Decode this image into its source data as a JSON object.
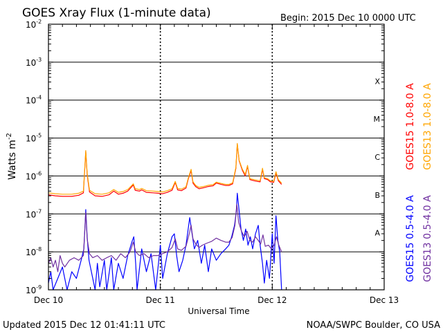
{
  "chart_data": {
    "type": "line",
    "title": "GOES Xray Flux (1-minute data)",
    "begin_label": "Begin:  2015 Dec 10 0000 UTC",
    "xlabel": "Universal Time",
    "ylabel": "Watts m",
    "ylabel_sup": "-2",
    "x_unit": "hours since 2015 Dec 10 0000 UTC",
    "xlim": [
      0,
      72
    ],
    "yscale": "log",
    "ylim": [
      1e-09,
      0.01
    ],
    "x_ticks": [
      {
        "value": 0,
        "label": "Dec 10"
      },
      {
        "value": 24,
        "label": "Dec 11"
      },
      {
        "value": 48,
        "label": "Dec 12"
      },
      {
        "value": 72,
        "label": "Dec 13"
      }
    ],
    "y_ticks": [
      {
        "exp": -9,
        "label": "10",
        "sup": "-9"
      },
      {
        "exp": -8,
        "label": "10",
        "sup": "-8"
      },
      {
        "exp": -7,
        "label": "10",
        "sup": "-7"
      },
      {
        "exp": -6,
        "label": "10",
        "sup": "-6"
      },
      {
        "exp": -5,
        "label": "10",
        "sup": "-5"
      },
      {
        "exp": -4,
        "label": "10",
        "sup": "-4"
      },
      {
        "exp": -3,
        "label": "10",
        "sup": "-3"
      },
      {
        "exp": -2,
        "label": "10",
        "sup": "-2"
      }
    ],
    "flare_classes": [
      {
        "label": "A",
        "exp": -7.5
      },
      {
        "label": "B",
        "exp": -6.5
      },
      {
        "label": "C",
        "exp": -5.5
      },
      {
        "label": "M",
        "exp": -4.5
      },
      {
        "label": "X",
        "exp": -3.5
      }
    ],
    "series": [
      {
        "name": "GOES15 1.0-8.0 A",
        "color": "#ff0000",
        "points": [
          [
            0,
            3.2e-07
          ],
          [
            1.5,
            3e-07
          ],
          [
            3,
            2.9e-07
          ],
          [
            5,
            2.9e-07
          ],
          [
            6.5,
            3.1e-07
          ],
          [
            7.5,
            3.6e-07
          ],
          [
            8.0,
            4.5e-06
          ],
          [
            8.3,
            1.1e-06
          ],
          [
            8.8,
            3.8e-07
          ],
          [
            10,
            3e-07
          ],
          [
            11.5,
            2.9e-07
          ],
          [
            13,
            3.2e-07
          ],
          [
            14,
            4e-07
          ],
          [
            15,
            3.3e-07
          ],
          [
            16,
            3.5e-07
          ],
          [
            17,
            4e-07
          ],
          [
            18.2,
            5.8e-07
          ],
          [
            18.6,
            4.2e-07
          ],
          [
            19.5,
            4e-07
          ],
          [
            20,
            4.3e-07
          ],
          [
            21,
            3.7e-07
          ],
          [
            22.5,
            3.6e-07
          ],
          [
            23.5,
            3.5e-07
          ],
          [
            24.5,
            3.4e-07
          ],
          [
            25.5,
            3.7e-07
          ],
          [
            26.5,
            4.2e-07
          ],
          [
            27.2,
            6.8e-07
          ],
          [
            27.7,
            4.3e-07
          ],
          [
            28.5,
            4.1e-07
          ],
          [
            29.5,
            4.8e-07
          ],
          [
            30.0,
            8.5e-07
          ],
          [
            30.6,
            1.4e-06
          ],
          [
            31.0,
            6.5e-07
          ],
          [
            31.6,
            5.2e-07
          ],
          [
            32.3,
            4.6e-07
          ],
          [
            33.3,
            4.9e-07
          ],
          [
            34.3,
            5.3e-07
          ],
          [
            35.3,
            5.5e-07
          ],
          [
            36.0,
            6.5e-07
          ],
          [
            37,
            6e-07
          ],
          [
            38,
            5.6e-07
          ],
          [
            38.7,
            5.6e-07
          ],
          [
            39.5,
            6.2e-07
          ],
          [
            40.2,
            1.6e-06
          ],
          [
            40.5,
            7e-06
          ],
          [
            40.9,
            2.5e-06
          ],
          [
            41.6,
            1.4e-06
          ],
          [
            42.2,
            1e-06
          ],
          [
            42.7,
            1.8e-06
          ],
          [
            43.2,
            8e-07
          ],
          [
            44.1,
            7.5e-07
          ],
          [
            44.8,
            7.2e-07
          ],
          [
            45.4,
            7e-07
          ],
          [
            45.9,
            1.5e-06
          ],
          [
            46.3,
            8.5e-07
          ],
          [
            47.0,
            8e-07
          ],
          [
            47.6,
            7e-07
          ],
          [
            48.3,
            6.8e-07
          ],
          [
            48.8,
            1.2e-06
          ],
          [
            49.3,
            7.5e-07
          ],
          [
            50.0,
            6e-07
          ]
        ]
      },
      {
        "name": "GOES13 1.0-8.0 A",
        "color": "#ffa500",
        "points": [
          [
            0,
            3.6e-07
          ],
          [
            1.5,
            3.4e-07
          ],
          [
            3,
            3.3e-07
          ],
          [
            5,
            3.3e-07
          ],
          [
            6.5,
            3.5e-07
          ],
          [
            7.5,
            4e-07
          ],
          [
            8.0,
            4.7e-06
          ],
          [
            8.3,
            1.2e-06
          ],
          [
            8.8,
            4.2e-07
          ],
          [
            10,
            3.4e-07
          ],
          [
            11.5,
            3.3e-07
          ],
          [
            13,
            3.6e-07
          ],
          [
            14,
            4.4e-07
          ],
          [
            15,
            3.7e-07
          ],
          [
            16,
            3.9e-07
          ],
          [
            17,
            4.4e-07
          ],
          [
            18.2,
            6.2e-07
          ],
          [
            18.6,
            4.6e-07
          ],
          [
            19.5,
            4.4e-07
          ],
          [
            20,
            4.7e-07
          ],
          [
            21,
            4.1e-07
          ],
          [
            22.5,
            4e-07
          ],
          [
            23.5,
            3.9e-07
          ],
          [
            24.5,
            3.8e-07
          ],
          [
            25.5,
            4.1e-07
          ],
          [
            26.5,
            4.6e-07
          ],
          [
            27.2,
            7.2e-07
          ],
          [
            27.7,
            4.7e-07
          ],
          [
            28.5,
            4.5e-07
          ],
          [
            29.5,
            5.2e-07
          ],
          [
            30.0,
            9e-07
          ],
          [
            30.6,
            1.5e-06
          ],
          [
            31.0,
            7e-07
          ],
          [
            31.6,
            5.6e-07
          ],
          [
            32.3,
            5e-07
          ],
          [
            33.3,
            5.3e-07
          ],
          [
            34.3,
            5.7e-07
          ],
          [
            35.3,
            5.9e-07
          ],
          [
            36.0,
            6.9e-07
          ],
          [
            37,
            6.4e-07
          ],
          [
            38,
            6e-07
          ],
          [
            38.7,
            6e-07
          ],
          [
            39.5,
            6.6e-07
          ],
          [
            40.2,
            1.7e-06
          ],
          [
            40.5,
            7.2e-06
          ],
          [
            40.9,
            2.6e-06
          ],
          [
            41.6,
            1.5e-06
          ],
          [
            42.2,
            1.1e-06
          ],
          [
            42.7,
            1.9e-06
          ],
          [
            43.2,
            8.5e-07
          ],
          [
            44.1,
            8e-07
          ],
          [
            44.8,
            7.7e-07
          ],
          [
            45.4,
            7.5e-07
          ],
          [
            45.9,
            1.6e-06
          ],
          [
            46.3,
            9e-07
          ],
          [
            47.0,
            8.5e-07
          ],
          [
            47.6,
            7.5e-07
          ],
          [
            48.3,
            7.2e-07
          ],
          [
            48.8,
            1.3e-06
          ],
          [
            49.3,
            8e-07
          ],
          [
            50.0,
            6.5e-07
          ]
        ]
      },
      {
        "name": "GOES15 0.5-4.0 A",
        "color": "#0000ff",
        "points": [
          [
            0,
            1.5e-09
          ],
          [
            0.5,
            3e-09
          ],
          [
            1,
            8e-10
          ],
          [
            2,
            2e-09
          ],
          [
            3,
            4e-09
          ],
          [
            4,
            1e-09
          ],
          [
            5,
            3e-09
          ],
          [
            6,
            2e-09
          ],
          [
            7,
            6e-09
          ],
          [
            7.6,
            1.2e-08
          ],
          [
            8.0,
            1.3e-07
          ],
          [
            8.3,
            2.5e-08
          ],
          [
            8.7,
            6e-09
          ],
          [
            9.2,
            3e-09
          ],
          [
            10,
            1e-09
          ],
          [
            10.5,
            5e-09
          ],
          [
            11,
            1.2e-09
          ],
          [
            12,
            6e-09
          ],
          [
            12.5,
            1e-09
          ],
          [
            13.5,
            7e-09
          ],
          [
            14,
            8e-10
          ],
          [
            15,
            5e-09
          ],
          [
            16,
            2e-09
          ],
          [
            17,
            8e-09
          ],
          [
            18,
            2e-08
          ],
          [
            18.3,
            2.5e-08
          ],
          [
            18.7,
            5e-09
          ],
          [
            19,
            1e-09
          ],
          [
            20,
            1.2e-08
          ],
          [
            21,
            3e-09
          ],
          [
            22,
            9e-09
          ],
          [
            23,
            1e-09
          ],
          [
            24,
            1.5e-08
          ],
          [
            24.5,
            2e-09
          ],
          [
            25.5,
            9e-09
          ],
          [
            26.5,
            2.5e-08
          ],
          [
            27.0,
            3e-08
          ],
          [
            27.5,
            8e-09
          ],
          [
            28,
            3e-09
          ],
          [
            28.8,
            6e-09
          ],
          [
            29.5,
            1.5e-08
          ],
          [
            30.3,
            8e-08
          ],
          [
            30.8,
            3e-08
          ],
          [
            31.3,
            1.2e-08
          ],
          [
            32,
            2e-08
          ],
          [
            32.8,
            5e-09
          ],
          [
            33.5,
            1.5e-08
          ],
          [
            34.3,
            3e-09
          ],
          [
            35.0,
            1.2e-08
          ],
          [
            36,
            6e-09
          ],
          [
            37,
            9e-09
          ],
          [
            38,
            1.2e-08
          ],
          [
            38.7,
            1.5e-08
          ],
          [
            39.3,
            2.5e-08
          ],
          [
            39.9,
            5e-08
          ],
          [
            40.3,
            1.2e-07
          ],
          [
            40.5,
            3.5e-07
          ],
          [
            40.9,
            1.2e-07
          ],
          [
            41.3,
            4e-08
          ],
          [
            41.8,
            2e-08
          ],
          [
            42.3,
            4e-08
          ],
          [
            42.8,
            1.5e-08
          ],
          [
            43.3,
            2.5e-08
          ],
          [
            43.8,
            1.2e-08
          ],
          [
            44.4,
            3e-08
          ],
          [
            45.0,
            5e-08
          ],
          [
            45.4,
            1.5e-08
          ],
          [
            45.9,
            5e-09
          ],
          [
            46.3,
            1.5e-09
          ],
          [
            46.8,
            6e-09
          ],
          [
            47.4,
            2e-09
          ],
          [
            48.0,
            3e-08
          ],
          [
            48.4,
            5e-09
          ],
          [
            48.8,
            9e-08
          ],
          [
            49.2,
            2e-08
          ],
          [
            49.6,
            1e-08
          ],
          [
            50.0,
            1e-09
          ]
        ]
      },
      {
        "name": "GOES13 0.5-4.0 A",
        "color": "#7030a0",
        "points": [
          [
            0,
            5e-09
          ],
          [
            0.5,
            7e-09
          ],
          [
            1,
            4e-09
          ],
          [
            1.5,
            6e-09
          ],
          [
            2,
            3e-09
          ],
          [
            2.5,
            8e-09
          ],
          [
            3,
            5e-09
          ],
          [
            3.5,
            4e-09
          ],
          [
            4.5,
            6e-09
          ],
          [
            5.5,
            7e-09
          ],
          [
            6.5,
            6e-09
          ],
          [
            7.5,
            8e-09
          ],
          [
            8.0,
            1.1e-07
          ],
          [
            8.3,
            2.2e-08
          ],
          [
            8.8,
            9e-09
          ],
          [
            9.5,
            7e-09
          ],
          [
            10.5,
            8e-09
          ],
          [
            11.5,
            6e-09
          ],
          [
            12.5,
            7e-09
          ],
          [
            13.5,
            8e-09
          ],
          [
            14.5,
            6e-09
          ],
          [
            15.5,
            9e-09
          ],
          [
            16.5,
            7e-09
          ],
          [
            17.5,
            1e-08
          ],
          [
            18.2,
            1.8e-08
          ],
          [
            18.7,
            1e-08
          ],
          [
            19.5,
            8e-09
          ],
          [
            20.5,
            9e-09
          ],
          [
            21.5,
            7e-09
          ],
          [
            22.5,
            8e-09
          ],
          [
            23.5,
            8e-09
          ],
          [
            24.5,
            9e-09
          ],
          [
            25.5,
            1e-08
          ],
          [
            26.5,
            1.3e-08
          ],
          [
            27.2,
            2.2e-08
          ],
          [
            27.7,
            1.2e-08
          ],
          [
            28.5,
            1.1e-08
          ],
          [
            29.5,
            1.4e-08
          ],
          [
            30.2,
            3e-08
          ],
          [
            30.6,
            5e-08
          ],
          [
            31.0,
            2.2e-08
          ],
          [
            31.6,
            1.6e-08
          ],
          [
            32.3,
            1.3e-08
          ],
          [
            33.0,
            1.5e-08
          ],
          [
            34.0,
            1.7e-08
          ],
          [
            35.0,
            1.9e-08
          ],
          [
            36.0,
            2.3e-08
          ],
          [
            37.0,
            2e-08
          ],
          [
            38.0,
            1.8e-08
          ],
          [
            38.7,
            1.8e-08
          ],
          [
            39.4,
            2.4e-08
          ],
          [
            40.0,
            5e-08
          ],
          [
            40.4,
            1.8e-07
          ],
          [
            40.8,
            6e-08
          ],
          [
            41.4,
            3.5e-08
          ],
          [
            42.0,
            2.5e-08
          ],
          [
            42.6,
            3.5e-08
          ],
          [
            43.2,
            2e-08
          ],
          [
            43.8,
            1.8e-08
          ],
          [
            44.4,
            2.5e-08
          ],
          [
            45.0,
            2e-08
          ],
          [
            45.5,
            1.6e-08
          ],
          [
            46.0,
            2.8e-08
          ],
          [
            46.5,
            1.4e-08
          ],
          [
            47.2,
            1.5e-08
          ],
          [
            47.8,
            1.2e-08
          ],
          [
            48.4,
            1.5e-08
          ],
          [
            48.9,
            2.5e-08
          ],
          [
            49.4,
            1.5e-08
          ],
          [
            50.0,
            1e-08
          ]
        ]
      }
    ]
  },
  "footer": {
    "updated": "Updated 2015 Dec 12 01:41:11 UTC",
    "credit": "NOAA/SWPC Boulder, CO USA"
  }
}
